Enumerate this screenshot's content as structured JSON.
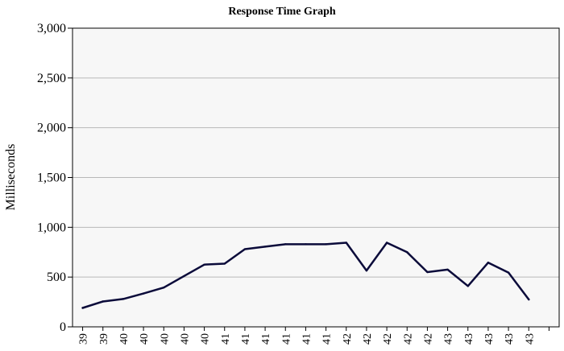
{
  "chart_data": {
    "type": "line",
    "title": "Response Time Graph",
    "ylabel": "Milliseconds",
    "xlabel": "",
    "ylim": [
      0,
      3000
    ],
    "yticks": [
      0,
      500,
      1000,
      1500,
      2000,
      2500,
      3000
    ],
    "ytick_labels": [
      "0",
      "500",
      "1,000",
      "1,500",
      "2,000",
      "2,500",
      "3,000"
    ],
    "xtick_labels": [
      "39",
      "39",
      "40",
      "40",
      "40",
      "40",
      "40",
      "41",
      "41",
      "41",
      "41",
      "41",
      "41",
      "42",
      "42",
      "42",
      "42",
      "42",
      "43",
      "43",
      "43",
      "43",
      "43",
      ""
    ],
    "grid": true,
    "series": [
      {
        "values": [
          190,
          255,
          280,
          335,
          395,
          510,
          625,
          635,
          780,
          805,
          830,
          830,
          830,
          845,
          565,
          845,
          750,
          550,
          575,
          410,
          645,
          545,
          275
        ],
        "color": "#0b0b3a"
      }
    ]
  }
}
